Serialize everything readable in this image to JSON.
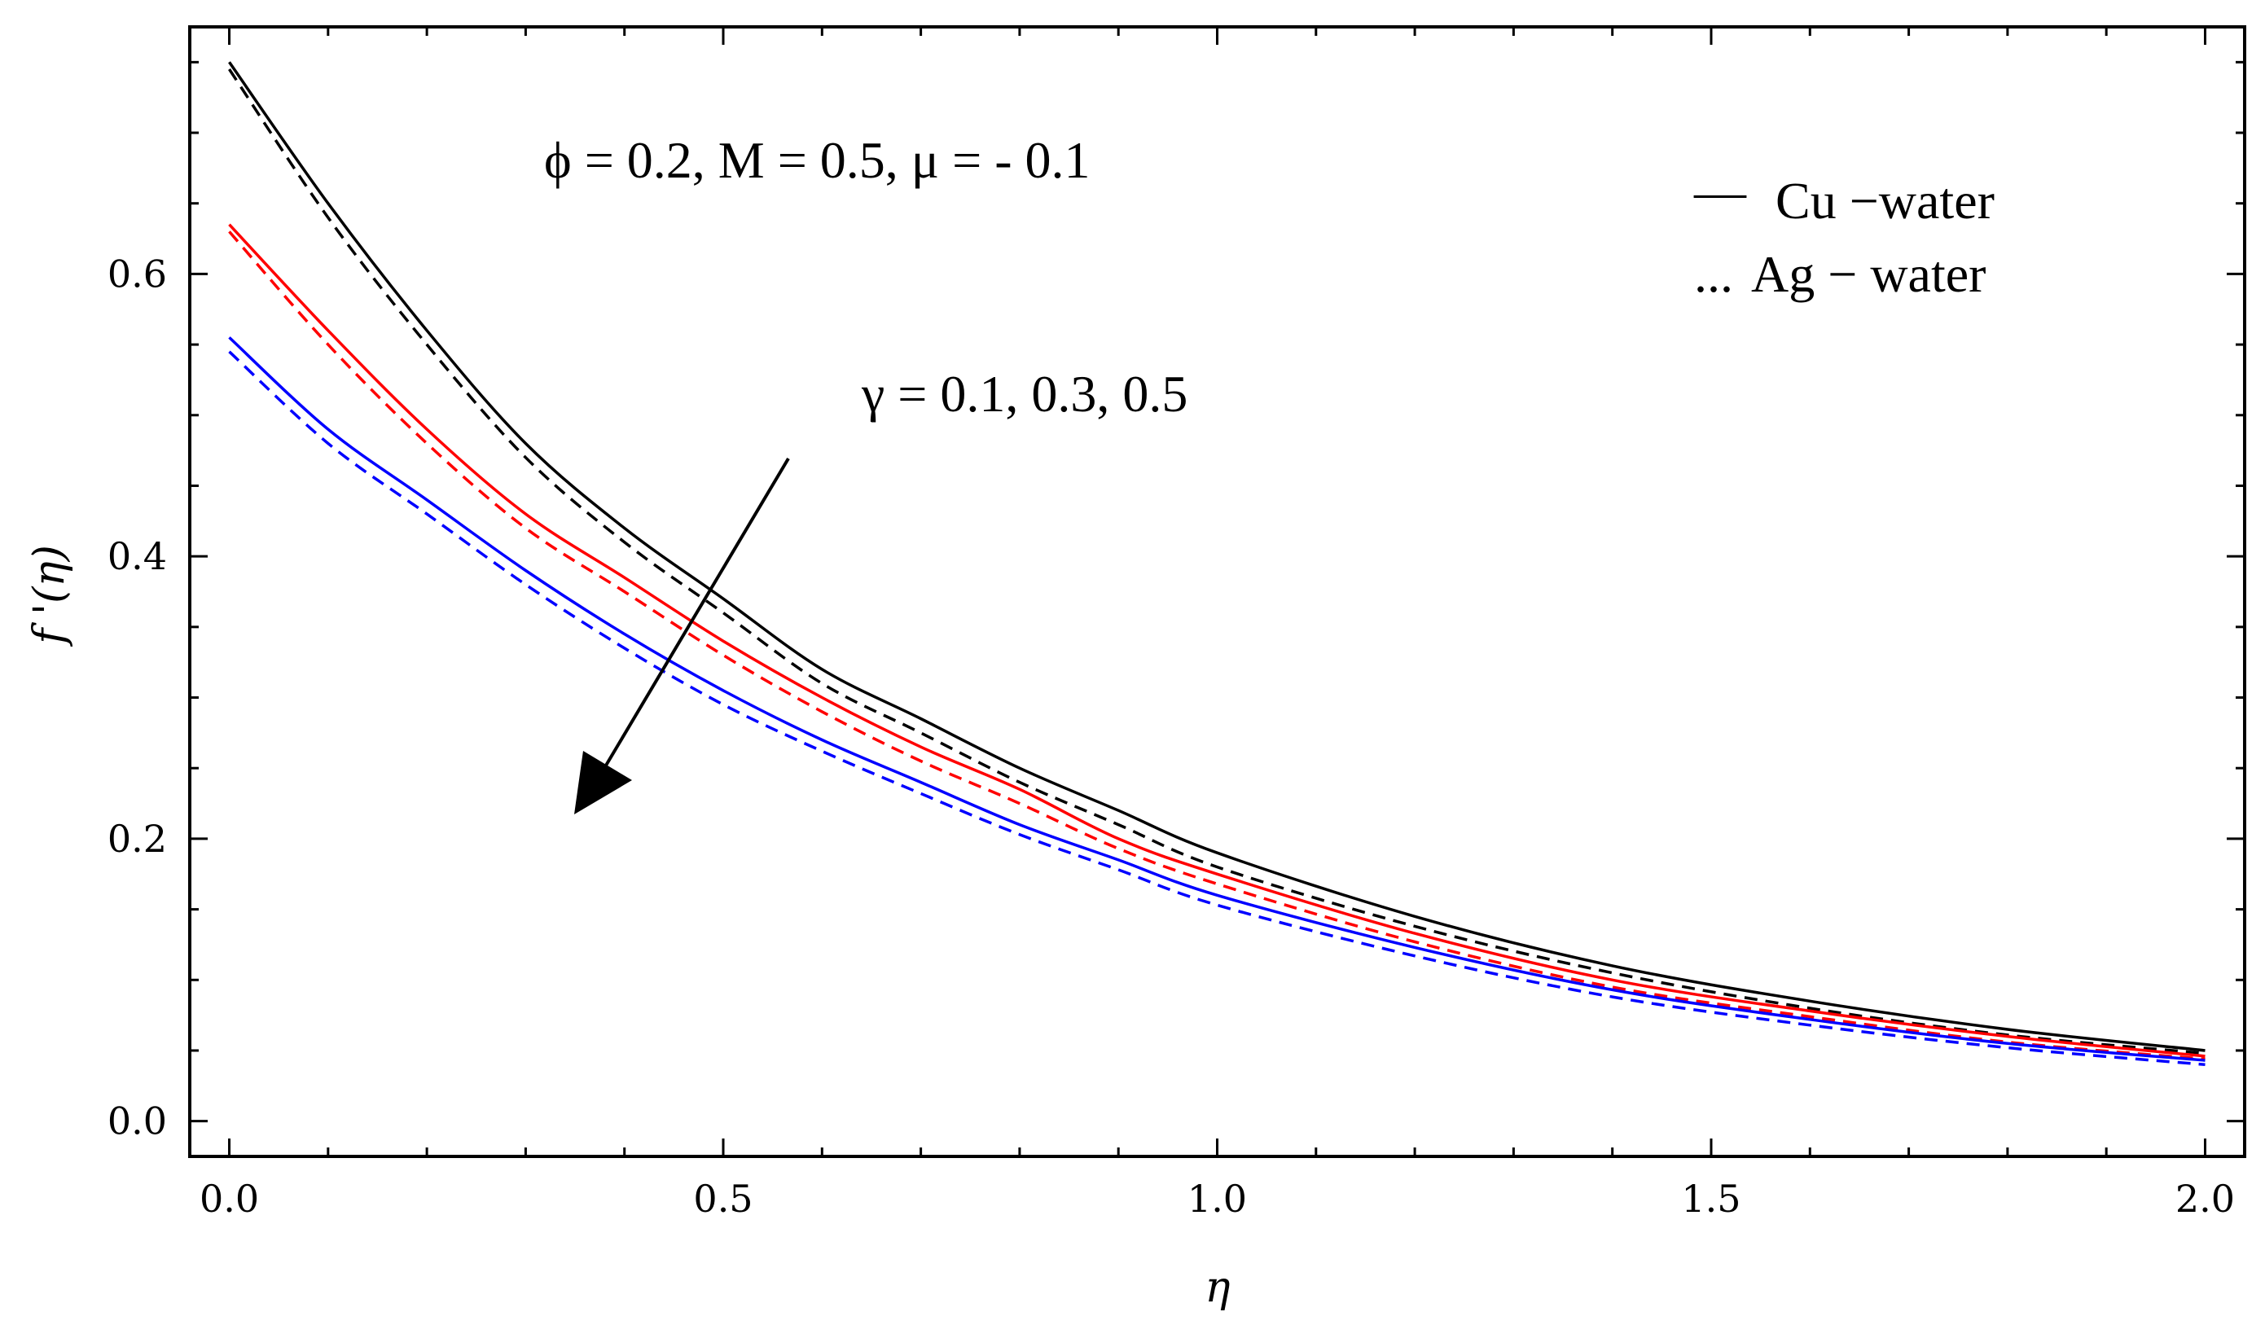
{
  "chart_data": {
    "type": "line",
    "title": "",
    "xlabel": "η",
    "ylabel": "f '(η)",
    "xlim": [
      -0.04,
      2.04
    ],
    "ylim": [
      -0.025,
      0.775
    ],
    "xticks": [
      0.0,
      0.5,
      1.0,
      1.5,
      2.0
    ],
    "xtick_labels": [
      "0.0",
      "0.5",
      "1.0",
      "1.5",
      "2.0"
    ],
    "yticks": [
      0.0,
      0.2,
      0.4,
      0.6
    ],
    "ytick_labels": [
      "0.0",
      "0.2",
      "0.4",
      "0.6"
    ],
    "grid": false,
    "x": [
      0.0,
      0.1,
      0.2,
      0.3,
      0.4,
      0.5,
      0.6,
      0.7,
      0.8,
      0.9,
      1.0,
      1.2,
      1.4,
      1.6,
      1.8,
      2.0
    ],
    "series": [
      {
        "name": "Cu-water, γ = 0.1",
        "color": "#000000",
        "style": "solid",
        "values": [
          0.75,
          0.65,
          0.56,
          0.48,
          0.42,
          0.37,
          0.32,
          0.285,
          0.25,
          0.22,
          0.19,
          0.145,
          0.11,
          0.085,
          0.065,
          0.05
        ]
      },
      {
        "name": "Ag-water, γ = 0.1",
        "color": "#000000",
        "style": "dashed",
        "values": [
          0.745,
          0.64,
          0.55,
          0.47,
          0.41,
          0.36,
          0.31,
          0.275,
          0.24,
          0.21,
          0.18,
          0.138,
          0.105,
          0.08,
          0.061,
          0.048
        ]
      },
      {
        "name": "Cu-water, γ = 0.3",
        "color": "#ff0000",
        "style": "solid",
        "values": [
          0.635,
          0.56,
          0.49,
          0.43,
          0.385,
          0.34,
          0.3,
          0.265,
          0.235,
          0.2,
          0.175,
          0.133,
          0.1,
          0.078,
          0.06,
          0.046
        ]
      },
      {
        "name": "Ag-water, γ = 0.3",
        "color": "#ff0000",
        "style": "dashed",
        "values": [
          0.63,
          0.55,
          0.48,
          0.42,
          0.375,
          0.33,
          0.29,
          0.255,
          0.225,
          0.193,
          0.168,
          0.127,
          0.095,
          0.074,
          0.056,
          0.044
        ]
      },
      {
        "name": "Cu-water, γ = 0.5",
        "color": "#0000ff",
        "style": "solid",
        "values": [
          0.555,
          0.49,
          0.44,
          0.39,
          0.345,
          0.305,
          0.27,
          0.24,
          0.21,
          0.185,
          0.16,
          0.123,
          0.093,
          0.072,
          0.055,
          0.043
        ]
      },
      {
        "name": "Ag-water, γ = 0.5",
        "color": "#0000ff",
        "style": "dashed",
        "values": [
          0.545,
          0.48,
          0.43,
          0.38,
          0.335,
          0.295,
          0.262,
          0.232,
          0.203,
          0.178,
          0.153,
          0.117,
          0.088,
          0.068,
          0.052,
          0.04
        ]
      }
    ],
    "annotations": {
      "params": "ϕ = 0.2, M = 0.5, μ = - 0.1",
      "gamma": "γ = 0.1,  0.3,  0.5"
    },
    "legend": {
      "placement": "top-right",
      "entries": [
        {
          "marker": "—",
          "label": "Cu −water"
        },
        {
          "marker": "...",
          "label": "Ag − water"
        }
      ]
    }
  }
}
